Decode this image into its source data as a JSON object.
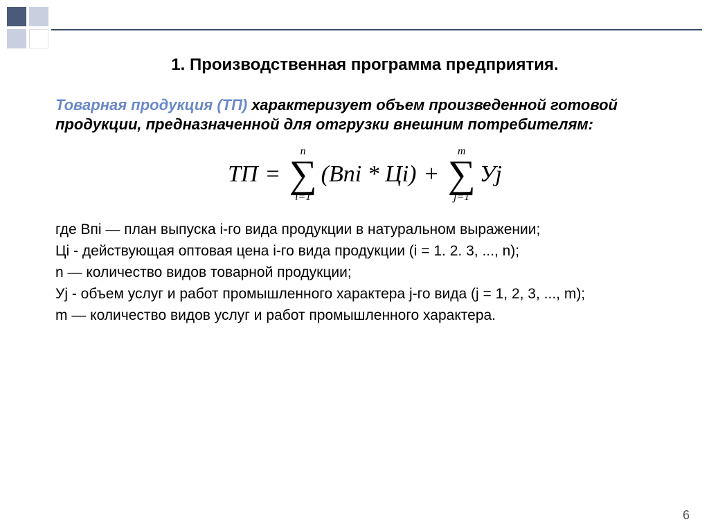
{
  "decor": {
    "accent_dark": "#4a5a7a",
    "accent_light": "#c8d0e0",
    "rule_color": "#3a4a6a"
  },
  "title": "1. Производственная программа предприятия.",
  "lead": {
    "term": "Товарная продукция (ТП)",
    "rest": " характеризует объем произведенной готовой продукции, предназначенной для отгрузки внешним потребителям:"
  },
  "formula": {
    "lhs": "ТП",
    "eq": "=",
    "sum1_top": "n",
    "sum1_bot": "i=1",
    "term1": "(Впi * Цi)",
    "plus": "+",
    "sum2_top": "m",
    "sum2_bot": "j=1",
    "term2": "Уj"
  },
  "defs": {
    "d1": "где Впi — план выпуска i-го вида продукции в натуральном выражении;",
    "d2": "Цi - действующая оптовая цена i-го вида продукции (i = 1. 2. 3, ..., n);",
    "d3": "n — количество видов товарной продукции;",
    "d4": "Уj -  объем услуг и работ промышленного характера j-го вида (j = 1, 2, 3, ..., m);",
    "d5": "m — количество видов услуг и работ промышленного характера."
  },
  "page_number": "6"
}
